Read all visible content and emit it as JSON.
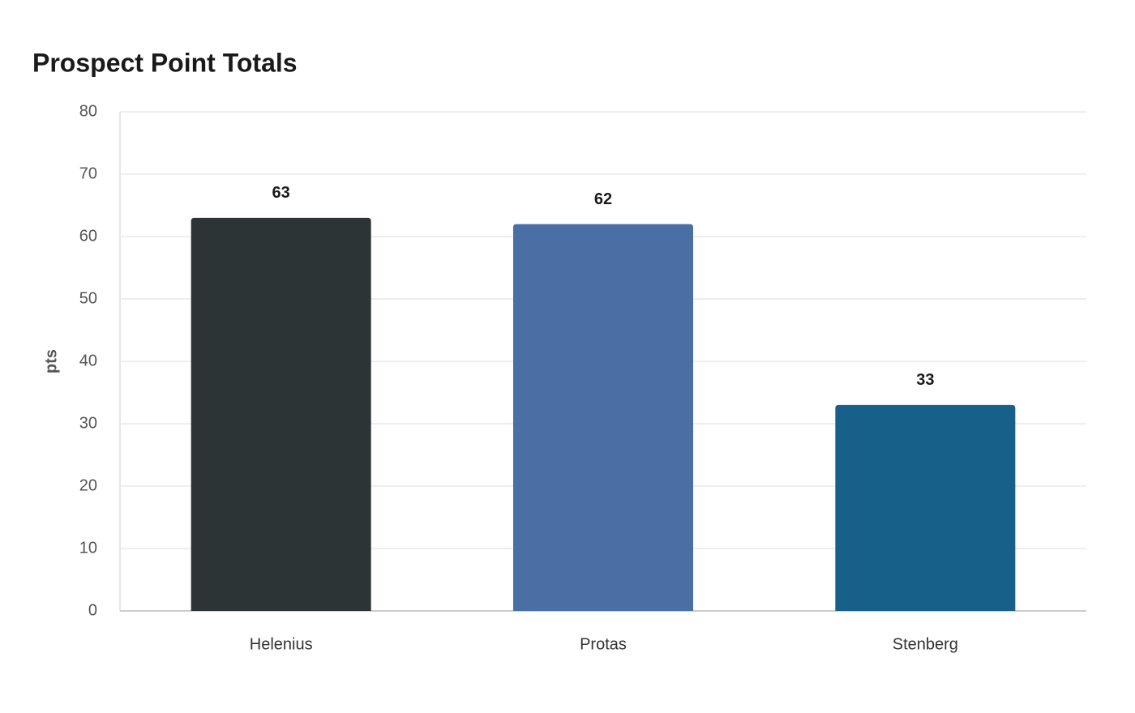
{
  "chart_data": {
    "type": "bar",
    "title": "Prospect Point Totals",
    "y_label": "pts",
    "categories": [
      "Helenius",
      "Protas",
      "Stenberg"
    ],
    "values": [
      63,
      62,
      33
    ],
    "colors": [
      "#2d3436",
      "#4a6fa5",
      "#17608a"
    ],
    "ylim": [
      0,
      80
    ],
    "yticks": [
      0,
      10,
      20,
      30,
      40,
      50,
      60,
      70,
      80
    ],
    "grid": true
  }
}
